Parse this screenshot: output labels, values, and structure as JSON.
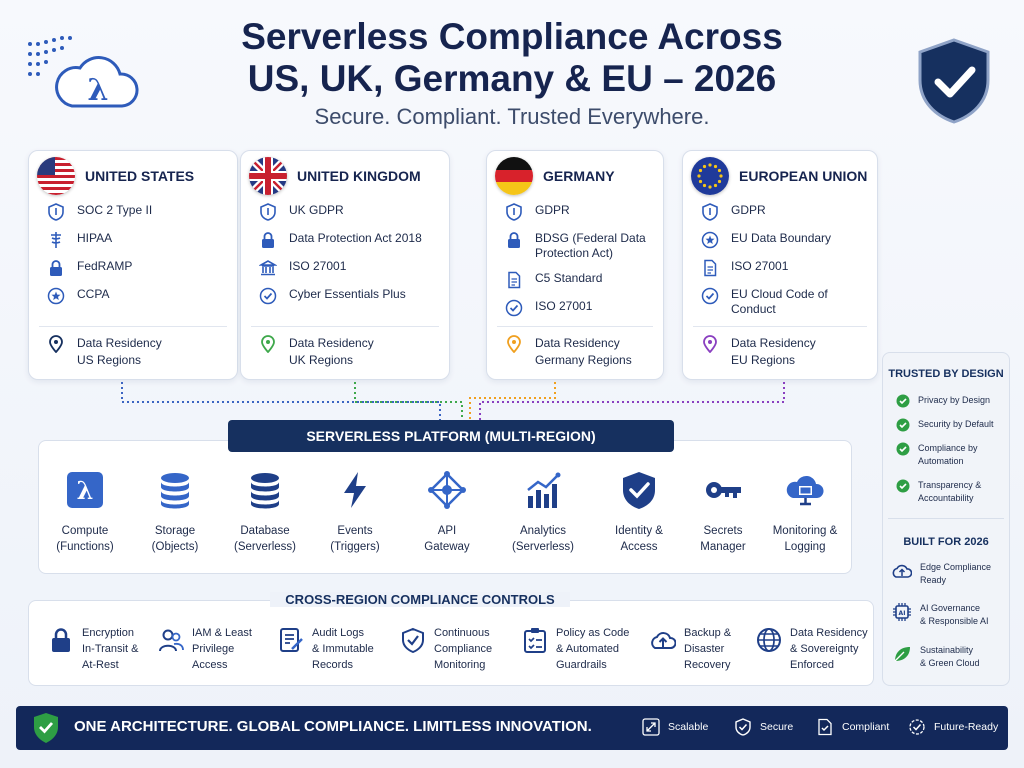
{
  "header": {
    "title_line1": "Serverless Compliance Across",
    "title_line2": "US, UK, Germany & EU – 2026",
    "subtitle": "Secure. Compliant. Trusted Everywhere."
  },
  "regions": [
    {
      "name": "UNITED STATES",
      "items": [
        "SOC 2 Type II",
        "HIPAA",
        "FedRAMP",
        "CCPA"
      ],
      "residency": [
        "Data Residency",
        "US Regions"
      ]
    },
    {
      "name": "UNITED KINGDOM",
      "items": [
        "UK GDPR",
        "Data Protection Act 2018",
        "ISO 27001",
        "Cyber Essentials Plus"
      ],
      "residency": [
        "Data Residency",
        "UK Regions"
      ]
    },
    {
      "name": "GERMANY",
      "items": [
        "GDPR",
        "BDSG (Federal Data Protection Act)",
        "C5 Standard",
        "ISO 27001"
      ],
      "residency": [
        "Data Residency",
        "Germany Regions"
      ]
    },
    {
      "name": "EUROPEAN UNION",
      "items": [
        "GDPR",
        "EU Data Boundary",
        "ISO 27001",
        "EU Cloud Code of Conduct"
      ],
      "residency": [
        "Data Residency",
        "EU Regions"
      ]
    }
  ],
  "platform": {
    "title": "SERVERLESS PLATFORM (MULTI-REGION)",
    "services": [
      {
        "l1": "Compute",
        "l2": "(Functions)"
      },
      {
        "l1": "Storage",
        "l2": "(Objects)"
      },
      {
        "l1": "Database",
        "l2": "(Serverless)"
      },
      {
        "l1": "Events",
        "l2": "(Triggers)"
      },
      {
        "l1": "API",
        "l2": "Gateway"
      },
      {
        "l1": "Analytics",
        "l2": "(Serverless)"
      },
      {
        "l1": "Identity &",
        "l2": "Access"
      },
      {
        "l1": "Secrets",
        "l2": "Manager"
      },
      {
        "l1": "Monitoring &",
        "l2": "Logging"
      }
    ]
  },
  "controls": {
    "title": "CROSS-REGION COMPLIANCE CONTROLS",
    "items": [
      [
        "Encryption",
        "In-Transit &",
        "At-Rest"
      ],
      [
        "IAM & Least",
        "Privilege",
        "Access"
      ],
      [
        "Audit Logs",
        "& Immutable",
        "Records"
      ],
      [
        "Continuous",
        "Compliance",
        "Monitoring"
      ],
      [
        "Policy as Code",
        "& Automated",
        "Guardrails"
      ],
      [
        "Backup &",
        "Disaster",
        "Recovery"
      ],
      [
        "Data Residency",
        "& Sovereignty",
        "Enforced"
      ]
    ]
  },
  "sidebar": {
    "trusted_title": "TRUSTED BY DESIGN",
    "trusted": [
      [
        "Privacy by Design"
      ],
      [
        "Security by Default"
      ],
      [
        "Compliance by",
        "Automation"
      ],
      [
        "Transparency &",
        "Accountability"
      ]
    ],
    "built_title": "BUILT FOR 2026",
    "built": [
      [
        "Edge Compliance",
        "Ready"
      ],
      [
        "AI Governance",
        "& Responsible AI"
      ],
      [
        "Sustainability",
        "& Green Cloud"
      ]
    ]
  },
  "footer": {
    "tagline": "ONE ARCHITECTURE. GLOBAL COMPLIANCE. LIMITLESS INNOVATION.",
    "badges": [
      "Scalable",
      "Secure",
      "Compliant",
      "Future-Ready"
    ]
  },
  "colors": {
    "navy": "#16305f",
    "accent_blue": "#2e5bba",
    "us_line": "#3b64c2",
    "uk_line": "#3ea84b",
    "de_line": "#f0a020",
    "eu_line": "#8a3fc0",
    "check_green": "#2e9e44"
  },
  "icons": {
    "logo": "lambda-cloud-icon",
    "top_right": "shield-check-icon"
  }
}
